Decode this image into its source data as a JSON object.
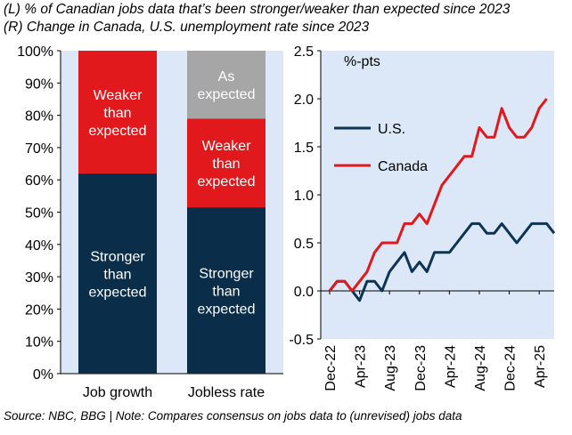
{
  "title_left": "(L) % of Canadian jobs data that’s been stronger/weaker than expected since 2023",
  "title_right": "(R) Change in Canada, U.S. unemployment rate since 2023",
  "footer": "Source: NBC, BBG | Note: Compares consensus on jobs data to (unrevised) jobs data",
  "colors": {
    "stronger": "#0a2e4a",
    "weaker": "#e2191c",
    "as_expected": "#a6a6a6",
    "plot_bg": "#dce8f8",
    "us_line": "#0d3453",
    "canada_line": "#e2191c"
  },
  "chart_data": [
    {
      "type": "bar",
      "stacked": true,
      "categories": [
        "Job growth",
        "Jobless rate"
      ],
      "series": [
        {
          "name": "Stronger than expected",
          "label_lines": [
            "Stronger",
            "than",
            "expected"
          ],
          "color": "#0a2e4a",
          "values": [
            62,
            51.5
          ]
        },
        {
          "name": "Weaker than expected",
          "label_lines": [
            "Weaker",
            "than",
            "expected"
          ],
          "color": "#e2191c",
          "values": [
            38,
            27.5
          ]
        },
        {
          "name": "As expected",
          "label_lines": [
            "As",
            "expected"
          ],
          "color": "#a6a6a6",
          "values": [
            0,
            21
          ]
        }
      ],
      "ylim": [
        0,
        100
      ],
      "yticks": [
        "0%",
        "10%",
        "20%",
        "30%",
        "40%",
        "50%",
        "60%",
        "70%",
        "80%",
        "90%",
        "100%"
      ],
      "ylabel": "",
      "xlabel": ""
    },
    {
      "type": "line",
      "unit_label": "%-pts",
      "x_tick_labels": [
        "Dec-22",
        "Apr-23",
        "Aug-23",
        "Dec-23",
        "Apr-24",
        "Aug-24",
        "Dec-24",
        "Apr-25"
      ],
      "x_tick_index": [
        0,
        4,
        8,
        12,
        16,
        20,
        24,
        28
      ],
      "ylim": [
        -0.5,
        2.5
      ],
      "yticks": [
        "-0.5",
        "0.0",
        "0.5",
        "1.0",
        "1.5",
        "2.0",
        "2.5"
      ],
      "series": [
        {
          "name": "U.S.",
          "color": "#0d3453",
          "values": [
            0.0,
            0.1,
            0.1,
            0.0,
            -0.1,
            0.1,
            0.1,
            0.0,
            0.2,
            0.3,
            0.4,
            0.2,
            0.3,
            0.2,
            0.4,
            0.4,
            0.4,
            0.5,
            0.6,
            0.7,
            0.7,
            0.6,
            0.6,
            0.7,
            0.6,
            0.5,
            0.6,
            0.7,
            0.7,
            0.7,
            0.6
          ]
        },
        {
          "name": "Canada",
          "color": "#e2191c",
          "values": [
            0.0,
            0.1,
            0.1,
            0.0,
            0.1,
            0.2,
            0.4,
            0.5,
            0.5,
            0.5,
            0.7,
            0.7,
            0.8,
            0.7,
            0.9,
            1.1,
            1.2,
            1.3,
            1.4,
            1.4,
            1.7,
            1.6,
            1.6,
            1.9,
            1.7,
            1.6,
            1.6,
            1.7,
            1.9,
            2.0
          ]
        }
      ]
    }
  ]
}
